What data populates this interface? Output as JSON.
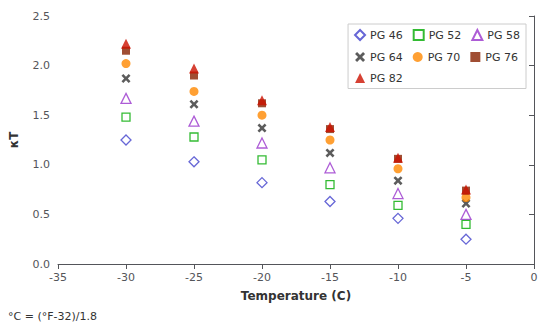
{
  "chart_data": {
    "type": "scatter",
    "xlabel": "Temperature (C)",
    "ylabel": "κT",
    "annotations": [
      "°C = (°F-32)/1.8"
    ],
    "xlim": [
      -35,
      0
    ],
    "ylim": [
      0,
      2.5
    ],
    "xticks": [
      -35,
      -30,
      -25,
      -20,
      -15,
      -10,
      -5,
      0
    ],
    "yticks": [
      {
        "value": 0,
        "label": "0.0"
      },
      0.5,
      {
        "value": 1.0,
        "label": "1.0"
      },
      1.5,
      {
        "value": 2.0,
        "label": "2.0"
      },
      2.5
    ],
    "grid": false,
    "legend": "upper right",
    "series": [
      {
        "name": "PG 46",
        "color": "#4040cc",
        "marker": "diamond-open",
        "x": [
          -30,
          -25,
          -20,
          -15,
          -10,
          -5
        ],
        "values": [
          1.25,
          1.03,
          0.82,
          0.63,
          0.46,
          0.25
        ]
      },
      {
        "name": "PG 52",
        "color": "#00aa00",
        "marker": "square-open",
        "x": [
          -30,
          -25,
          -20,
          -15,
          -10,
          -5
        ],
        "values": [
          1.48,
          1.28,
          1.05,
          0.8,
          0.59,
          0.4
        ]
      },
      {
        "name": "PG 58",
        "color": "#9933cc",
        "marker": "triangle-open",
        "x": [
          -30,
          -25,
          -20,
          -15,
          -10,
          -5
        ],
        "values": [
          1.67,
          1.44,
          1.22,
          0.97,
          0.71,
          0.5
        ]
      },
      {
        "name": "PG 64",
        "color": "#333333",
        "marker": "x",
        "x": [
          -30,
          -25,
          -20,
          -15,
          -10,
          -5
        ],
        "values": [
          1.87,
          1.61,
          1.37,
          1.12,
          0.84,
          0.61
        ]
      },
      {
        "name": "PG 70",
        "color": "#ff8800",
        "marker": "circle",
        "x": [
          -30,
          -25,
          -20,
          -15,
          -10,
          -5
        ],
        "values": [
          2.02,
          1.74,
          1.5,
          1.25,
          0.96,
          0.67
        ]
      },
      {
        "name": "PG 76",
        "color": "#882200",
        "marker": "square",
        "x": [
          -30,
          -25,
          -20,
          -15,
          -10,
          -5
        ],
        "values": [
          2.15,
          1.9,
          1.62,
          1.36,
          1.06,
          0.74
        ]
      },
      {
        "name": "PG 82",
        "color": "#cc1100",
        "marker": "triangle",
        "x": [
          -30,
          -25,
          -20,
          -15,
          -10,
          -5
        ],
        "values": [
          2.22,
          1.97,
          1.65,
          1.38,
          1.07,
          0.75
        ]
      }
    ]
  }
}
